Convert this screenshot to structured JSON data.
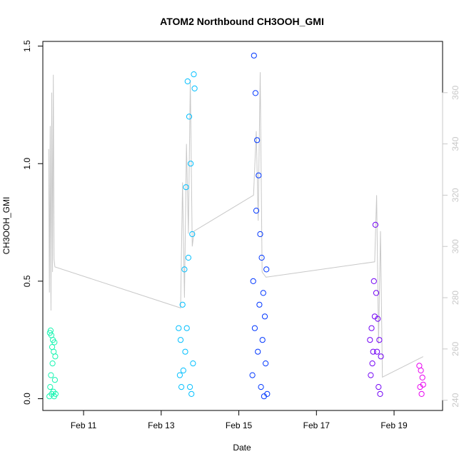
{
  "chart_data": {
    "type": "scatter",
    "title": "ATOM2 Northbound CH3OOH_GMI",
    "xlabel": "Date",
    "ylabel": "CH3OOH_GMI",
    "x_unit": "days since Feb 1",
    "xlim": [
      9.95,
      20.25
    ],
    "ylim": [
      -0.05,
      1.52
    ],
    "y2lim": [
      236,
      380
    ],
    "x_ticks": [
      {
        "value": 11,
        "label": "Feb 11"
      },
      {
        "value": 13,
        "label": "Feb 13"
      },
      {
        "value": 15,
        "label": "Feb 15"
      },
      {
        "value": 17,
        "label": "Feb 17"
      },
      {
        "value": 19,
        "label": "Feb 19"
      }
    ],
    "y_ticks": [
      {
        "value": 0.0,
        "label": "0.0"
      },
      {
        "value": 0.5,
        "label": "0.5"
      },
      {
        "value": 1.0,
        "label": "1.0"
      },
      {
        "value": 1.5,
        "label": "1.5"
      }
    ],
    "y2_ticks": [
      {
        "value": 240,
        "label": "240"
      },
      {
        "value": 260,
        "label": "260"
      },
      {
        "value": 280,
        "label": "280"
      },
      {
        "value": 300,
        "label": "300"
      },
      {
        "value": 320,
        "label": "320"
      },
      {
        "value": 340,
        "label": "340"
      },
      {
        "value": 360,
        "label": "360"
      }
    ],
    "grid": false,
    "legend": "none",
    "series": [
      {
        "color": "#14f5b0",
        "x": [
          10.12,
          10.13,
          10.14,
          10.15,
          10.16,
          10.17,
          10.18,
          10.19,
          10.2,
          10.21,
          10.22,
          10.23,
          10.24,
          10.25,
          10.26,
          10.27,
          10.28
        ],
        "y": [
          0.01,
          0.28,
          0.05,
          0.29,
          0.1,
          0.27,
          0.02,
          0.22,
          0.15,
          0.25,
          0.03,
          0.2,
          0.01,
          0.24,
          0.08,
          0.18,
          0.02
        ]
      },
      {
        "color": "#00bfff",
        "x": [
          13.45,
          13.48,
          13.5,
          13.52,
          13.55,
          13.57,
          13.6,
          13.62,
          13.64,
          13.66,
          13.68,
          13.7,
          13.72,
          13.74,
          13.76,
          13.78,
          13.8,
          13.82,
          13.84,
          13.86
        ],
        "y": [
          0.3,
          0.1,
          0.25,
          0.05,
          0.4,
          0.12,
          0.55,
          0.2,
          0.9,
          0.3,
          1.35,
          0.6,
          1.2,
          0.05,
          1.0,
          0.02,
          0.7,
          0.15,
          1.38,
          1.32
        ]
      },
      {
        "color": "#0036ff",
        "x": [
          15.35,
          15.37,
          15.39,
          15.41,
          15.43,
          15.45,
          15.47,
          15.49,
          15.51,
          15.53,
          15.55,
          15.57,
          15.59,
          15.61,
          15.63,
          15.65,
          15.67,
          15.69,
          15.71,
          15.73
        ],
        "y": [
          0.1,
          0.5,
          1.46,
          0.3,
          1.3,
          0.8,
          1.1,
          0.2,
          0.95,
          0.4,
          0.7,
          0.05,
          0.6,
          0.25,
          0.45,
          0.01,
          0.35,
          0.15,
          0.55,
          0.02
        ]
      },
      {
        "color": "#7200f5",
        "x": [
          18.38,
          18.4,
          18.42,
          18.44,
          18.46,
          18.48,
          18.5,
          18.52,
          18.54,
          18.56,
          18.58,
          18.6,
          18.62,
          18.64,
          18.66
        ],
        "y": [
          0.25,
          0.1,
          0.3,
          0.15,
          0.2,
          0.5,
          0.35,
          0.74,
          0.45,
          0.2,
          0.34,
          0.05,
          0.25,
          0.02,
          0.18
        ]
      },
      {
        "color": "#e800f0",
        "x": [
          19.65,
          19.67,
          19.69,
          19.71,
          19.73,
          19.75
        ],
        "y": [
          0.14,
          0.05,
          0.12,
          0.02,
          0.09,
          0.06
        ]
      }
    ],
    "secondary_line": {
      "color": "#c8c8c8",
      "x": [
        10.1,
        10.12,
        10.14,
        10.16,
        10.18,
        10.2,
        10.22,
        10.24,
        10.26,
        13.5,
        13.55,
        13.6,
        13.65,
        13.7,
        13.75,
        13.8,
        13.85,
        15.38,
        15.45,
        15.5,
        15.55,
        15.6,
        15.7,
        18.5,
        18.55,
        18.6,
        18.65,
        18.7,
        19.75
      ],
      "y": [
        338,
        282,
        347,
        275,
        360,
        290,
        367,
        295,
        292,
        276,
        325,
        280,
        340,
        305,
        365,
        300,
        306,
        320,
        345,
        310,
        368,
        290,
        288,
        294,
        320,
        262,
        306,
        249,
        257
      ]
    }
  }
}
